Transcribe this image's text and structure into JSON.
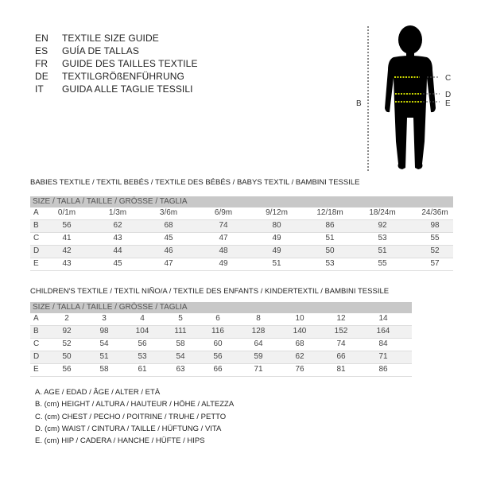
{
  "titles": [
    {
      "code": "EN",
      "text": "TEXTILE SIZE GUIDE"
    },
    {
      "code": "ES",
      "text": "GUÍA DE TALLAS"
    },
    {
      "code": "FR",
      "text": "GUIDE DES TAILLES TEXTILE"
    },
    {
      "code": "DE",
      "text": "TEXTILGRÖßENFÜHRUNG"
    },
    {
      "code": "IT",
      "text": "GUIDA ALLE TAGLIE TESSILI"
    }
  ],
  "figure": {
    "labels": {
      "B": "B",
      "C": "C",
      "D": "D",
      "E": "E"
    },
    "measure_color": "#c8d400"
  },
  "babies": {
    "title": "BABIES TEXTILE / TEXTIL BEBÉS / TEXTILE DES BÉBÉS / BABYS TEXTIL  / BAMBINI TESSILE",
    "header": "SIZE / TALLA / TAILLE / GRÖSSE / TAGLIA",
    "rows": [
      [
        "A",
        "0/1m",
        "1/3m",
        "3/6m",
        "6/9m",
        "9/12m",
        "12/18m",
        "18/24m",
        "24/36m"
      ],
      [
        "B",
        "56",
        "62",
        "68",
        "74",
        "80",
        "86",
        "92",
        "98"
      ],
      [
        "C",
        "41",
        "43",
        "45",
        "47",
        "49",
        "51",
        "53",
        "55"
      ],
      [
        "D",
        "42",
        "44",
        "46",
        "48",
        "49",
        "50",
        "51",
        "52"
      ],
      [
        "E",
        "43",
        "45",
        "47",
        "49",
        "51",
        "53",
        "55",
        "57"
      ]
    ]
  },
  "children": {
    "title": "CHILDREN'S TEXTILE / TEXTIL NIÑO/A / TEXTILE DES ENFANTS / KINDERTEXTIL / BAMBINI TESSILE",
    "header": "SIZE / TALLA / TAILLE / GRÖSSE / TAGLIA",
    "rows": [
      [
        "A",
        "2",
        "3",
        "4",
        "5",
        "6",
        "8",
        "10",
        "12",
        "14"
      ],
      [
        "B",
        "92",
        "98",
        "104",
        "111",
        "116",
        "128",
        "140",
        "152",
        "164"
      ],
      [
        "C",
        "52",
        "54",
        "56",
        "58",
        "60",
        "64",
        "68",
        "74",
        "84"
      ],
      [
        "D",
        "50",
        "51",
        "53",
        "54",
        "56",
        "59",
        "62",
        "66",
        "71"
      ],
      [
        "E",
        "56",
        "58",
        "61",
        "63",
        "66",
        "71",
        "76",
        "81",
        "86"
      ]
    ]
  },
  "legend": [
    "A. AGE / EDAD / ÂGE / ALTER / ETÀ",
    "B. (cm) HEIGHT / ALTURA / HAUTEUR / HÖHE / ALTEZZA",
    "C. (cm) CHEST / PECHO / POITRINE / TRUHE / PETTO",
    "D. (cm) WAIST / CINTURA / TAILLE / HÜFTUNG / VITA",
    "E. (cm) HIP / CADERA / HANCHE / HÜFTE / HIPS"
  ]
}
